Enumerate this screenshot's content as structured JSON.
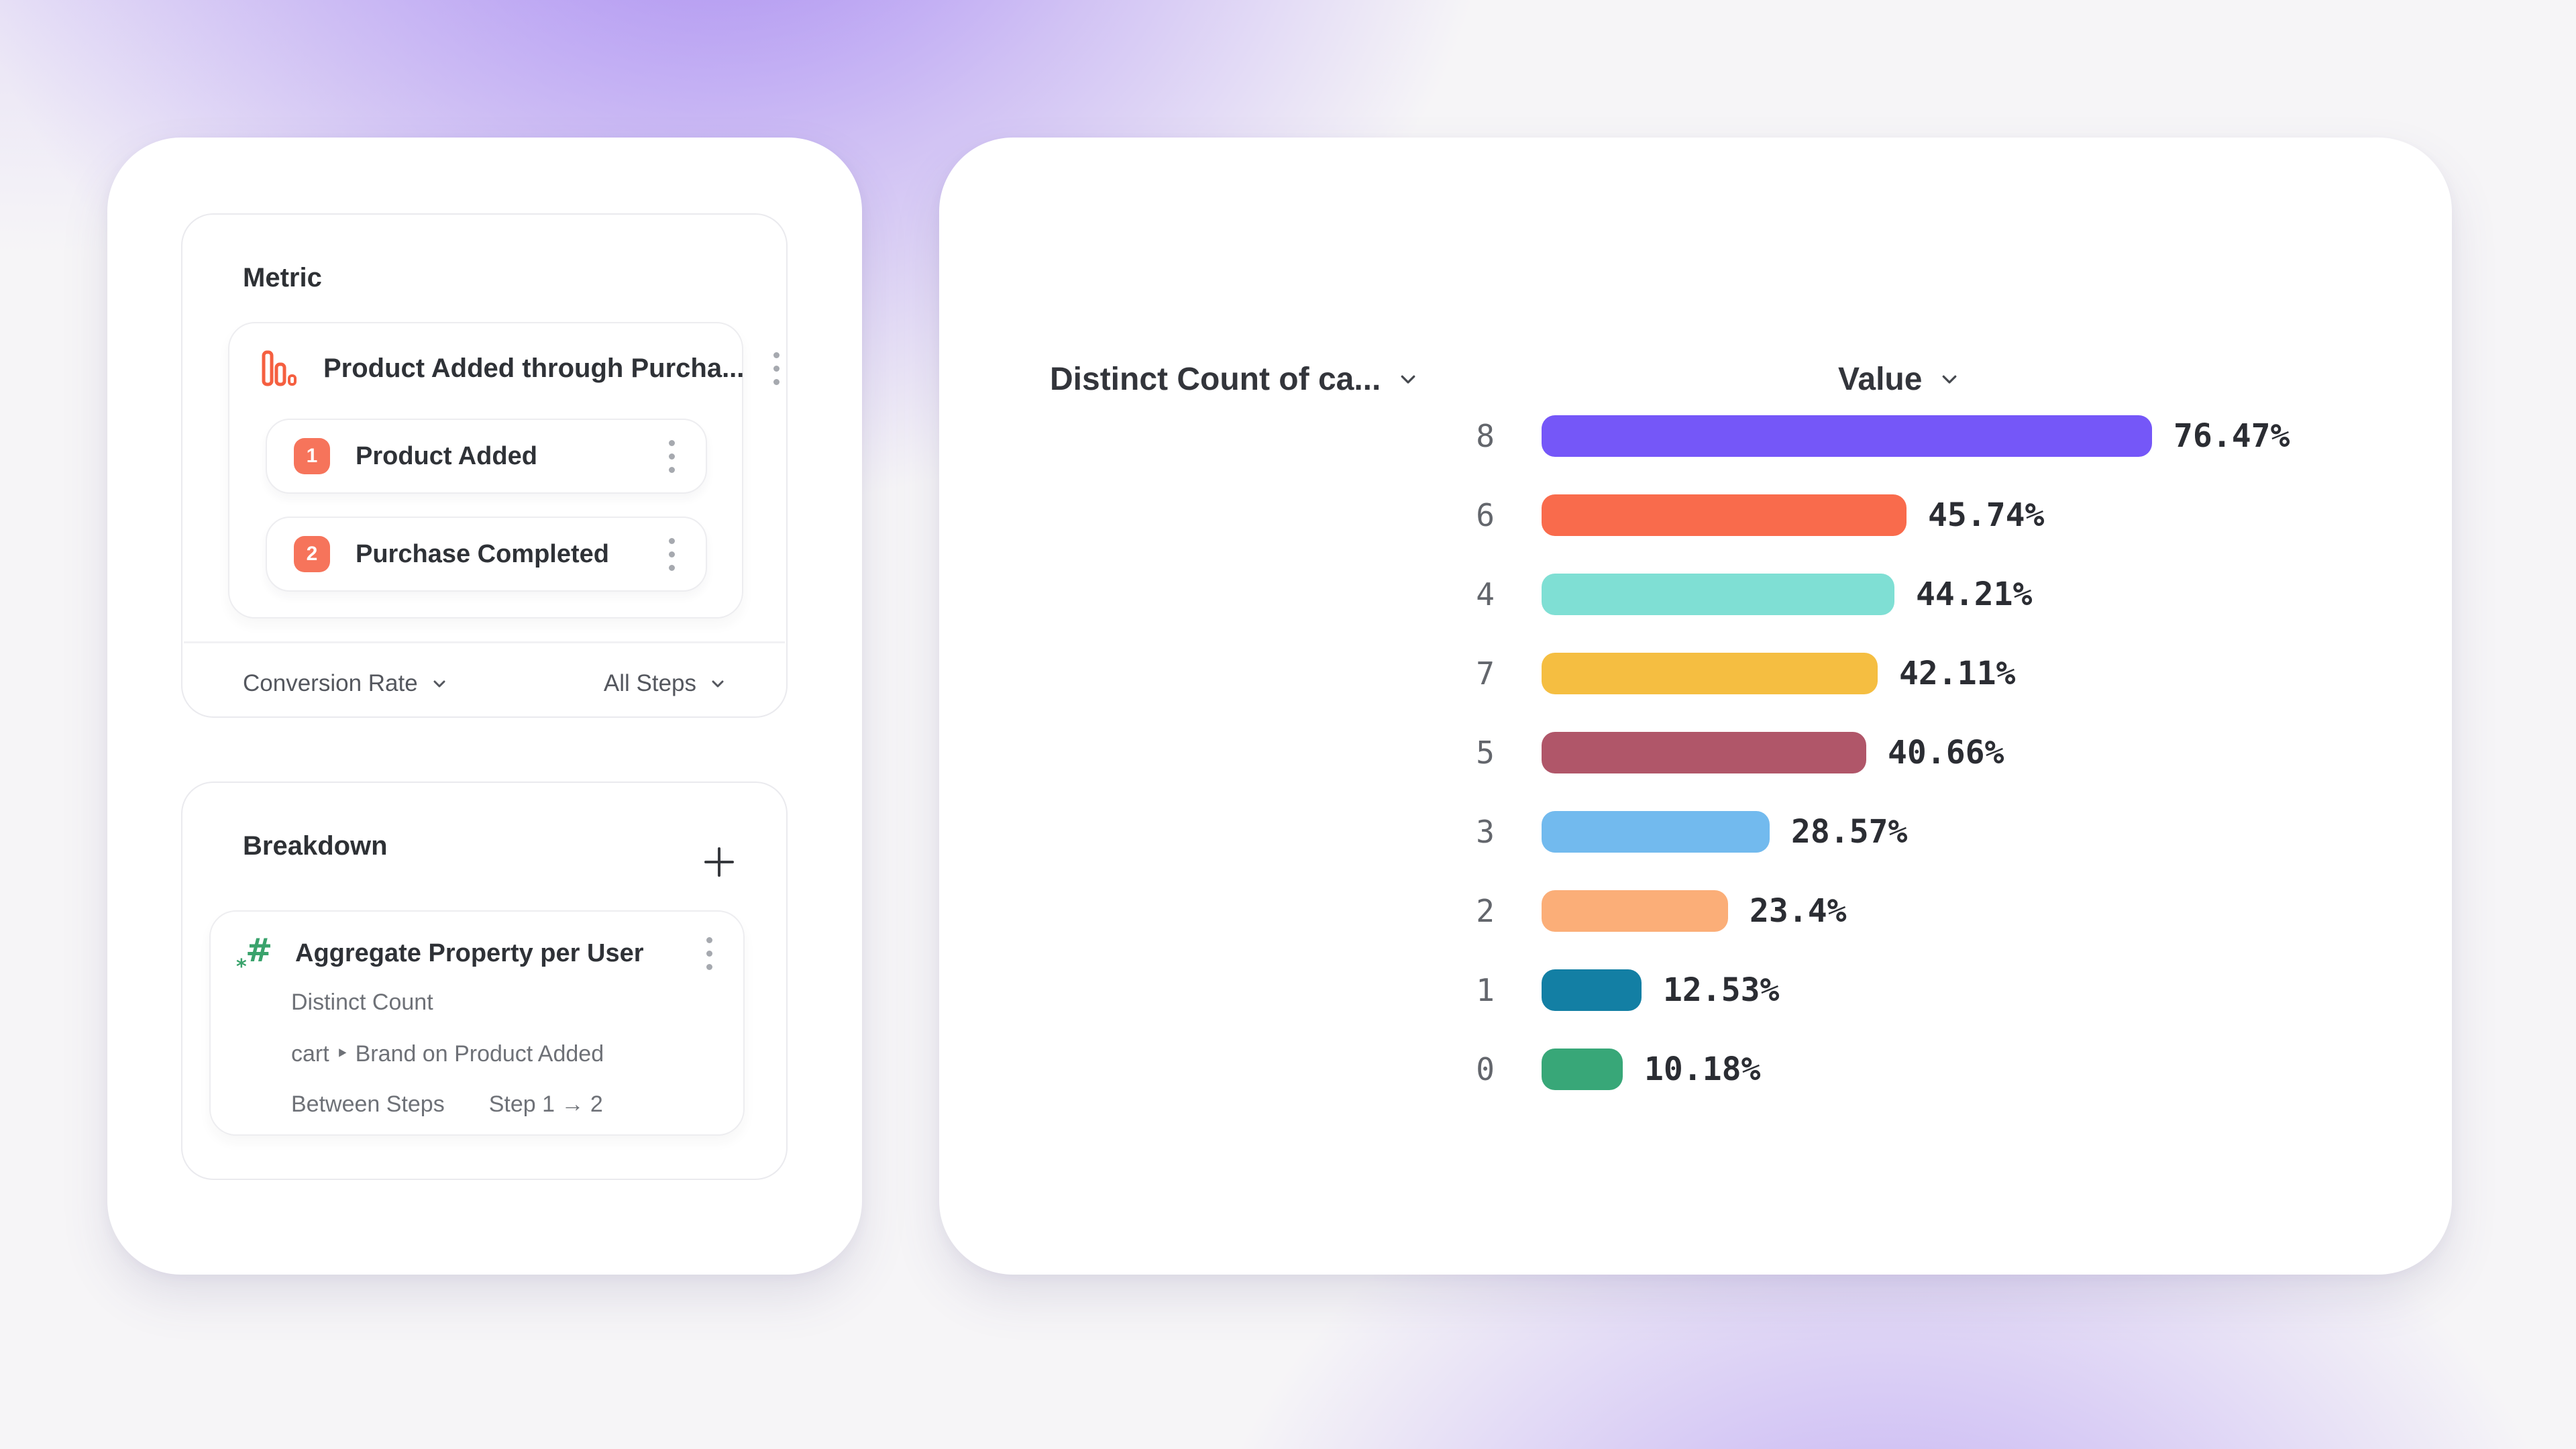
{
  "left_panel": {
    "metric": {
      "title": "Metric",
      "funnel": {
        "name": "Product Added through Purcha...",
        "icon": "bar-chart-icon",
        "icon_color": "#F55F40",
        "steps": [
          {
            "index": "1",
            "label": "Product Added"
          },
          {
            "index": "2",
            "label": "Purchase Completed"
          }
        ],
        "step_badge_color": "#F6745B"
      },
      "footer": {
        "conversion_label": "Conversion Rate",
        "steps_scope_label": "All Steps"
      }
    },
    "breakdown": {
      "title": "Breakdown",
      "add_icon": "plus-icon",
      "item": {
        "icon": "hash-asterisk-icon",
        "icon_color": "#3AA36C",
        "hash_glyph": "#",
        "star_glyph": "*",
        "name": "Aggregate Property per User",
        "aggregation": "Distinct Count",
        "property": "cart ‣ Brand on Product Added",
        "between_steps_label": "Between Steps",
        "between_steps_value": "Step 1 → 2"
      }
    }
  },
  "chart_data": {
    "type": "bar",
    "orientation": "horizontal",
    "column_headers": [
      "Distinct Count of ca...",
      "Value"
    ],
    "categories": [
      "8",
      "6",
      "4",
      "7",
      "5",
      "3",
      "2",
      "1",
      "0"
    ],
    "values": [
      76.47,
      45.74,
      44.21,
      42.11,
      40.66,
      28.57,
      23.4,
      12.53,
      10.18
    ],
    "value_labels": [
      "76.47%",
      "45.74%",
      "44.21%",
      "42.11%",
      "40.66%",
      "28.57%",
      "23.4%",
      "12.53%",
      "10.18%"
    ],
    "bar_colors": [
      "#7557F8",
      "#F96B4C",
      "#7FDFD4",
      "#F5BE41",
      "#B05669",
      "#72BAEE",
      "#FBAE78",
      "#137FA4",
      "#38A778"
    ],
    "xlim": [
      0,
      100
    ],
    "grid": false,
    "legend": "none"
  },
  "icons": {
    "dropdown": "chevron-down-icon",
    "row_menu": "kebab-icon"
  }
}
